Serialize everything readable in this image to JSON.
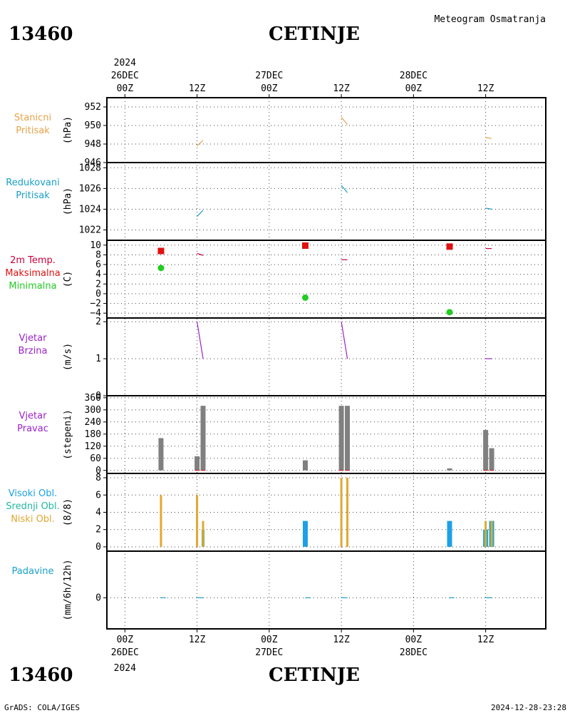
{
  "header": {
    "station_id": "13460",
    "station_name": "CETINJE",
    "subtitle": "Meteogram Osmatranja"
  },
  "footer": {
    "source": "GrADS: COLA/IGES",
    "timestamp": "2024-12-28-23:28"
  },
  "time_axis": {
    "year": "2024",
    "ticks": [
      {
        "hour": 0,
        "label": "00Z",
        "date": "26DEC"
      },
      {
        "hour": 12,
        "label": "12Z"
      },
      {
        "hour": 24,
        "label": "00Z",
        "date": "27DEC"
      },
      {
        "hour": 36,
        "label": "12Z"
      },
      {
        "hour": 48,
        "label": "00Z",
        "date": "28DEC"
      },
      {
        "hour": 60,
        "label": "12Z"
      }
    ],
    "xlim_hours": [
      -3,
      70
    ]
  },
  "colors": {
    "pressure_station": "#e8a24a",
    "pressure_reduced": "#1aa0c8",
    "temp_2m": "#c8003c",
    "temp_max": "#e01010",
    "temp_min": "#22cc22",
    "wind": "#9b22c8",
    "wind_dir_bar": "#808080",
    "cloud_high": "#1ea0e6",
    "cloud_mid": "#22b8a0",
    "cloud_low": "#e0a832",
    "precip": "#1aa0c8"
  },
  "chart_data": [
    {
      "type": "line",
      "panel": "station_pressure",
      "label_lines": [
        "Stanicni",
        "Pritisak"
      ],
      "ylabel": "(hPa)",
      "ylim": [
        946,
        953
      ],
      "yticks": [
        946,
        948,
        950,
        952
      ],
      "grid": true,
      "segments": [
        {
          "x": [
            12,
            13
          ],
          "y": [
            947.8,
            948.4
          ]
        },
        {
          "x": [
            36,
            37
          ],
          "y": [
            950.9,
            950.1
          ]
        },
        {
          "x": [
            60,
            61
          ],
          "y": [
            948.7,
            948.6
          ]
        }
      ]
    },
    {
      "type": "line",
      "panel": "reduced_pressure",
      "label_lines": [
        "Redukovani",
        "Pritisak"
      ],
      "ylabel": "(hPa)",
      "ylim": [
        1021,
        1028.5
      ],
      "yticks": [
        1022,
        1024,
        1026,
        1028
      ],
      "grid": true,
      "segments": [
        {
          "x": [
            12,
            13
          ],
          "y": [
            1023.3,
            1023.9
          ]
        },
        {
          "x": [
            36,
            37
          ],
          "y": [
            1026.3,
            1025.6
          ]
        },
        {
          "x": [
            60,
            61
          ],
          "y": [
            1024.1,
            1024.0
          ]
        }
      ]
    },
    {
      "type": "scatter",
      "panel": "temperature",
      "label_lines": [
        "2m Temp.",
        "Maksimalna",
        "Minimalna"
      ],
      "ylabel": "(C)",
      "ylim": [
        -5,
        11
      ],
      "yticks": [
        -4,
        -2,
        0,
        2,
        4,
        6,
        8,
        10
      ],
      "grid": true,
      "temp_2m": [
        {
          "x": [
            12,
            13
          ],
          "y": [
            8.3,
            7.9
          ]
        },
        {
          "x": [
            36,
            37
          ],
          "y": [
            7.0,
            7.0
          ]
        },
        {
          "x": [
            60,
            61
          ],
          "y": [
            9.3,
            9.3
          ]
        }
      ],
      "maximum": [
        {
          "x": 6,
          "y": 8.8
        },
        {
          "x": 30,
          "y": 9.9
        },
        {
          "x": 54,
          "y": 9.7
        }
      ],
      "minimum": [
        {
          "x": 6,
          "y": 5.3
        },
        {
          "x": 30,
          "y": -0.8
        },
        {
          "x": 54,
          "y": -3.8
        }
      ]
    },
    {
      "type": "line",
      "panel": "wind_speed",
      "label_lines": [
        "Vjetar",
        "Brzina"
      ],
      "ylabel": "(m/s)",
      "ylim": [
        0,
        2.1
      ],
      "yticks": [
        0,
        1,
        2
      ],
      "grid": true,
      "segments": [
        {
          "x": [
            12,
            13
          ],
          "y": [
            2.0,
            1.0
          ]
        },
        {
          "x": [
            36,
            37
          ],
          "y": [
            2.0,
            1.0
          ]
        },
        {
          "x": [
            60,
            61
          ],
          "y": [
            1.0,
            1.0
          ]
        }
      ]
    },
    {
      "type": "bar",
      "panel": "wind_direction",
      "label_lines": [
        "Vjetar",
        "Pravac"
      ],
      "ylabel": "(stepeni)",
      "ylim": [
        -15,
        370
      ],
      "yticks": [
        0,
        60,
        120,
        180,
        240,
        300,
        360
      ],
      "grid": true,
      "x": [
        6,
        12,
        13,
        30,
        36,
        37,
        54,
        60,
        61
      ],
      "values": [
        160,
        70,
        320,
        50,
        320,
        320,
        10,
        200,
        110
      ]
    },
    {
      "type": "bar",
      "panel": "cloud_cover",
      "label_lines": [
        "Visoki Obl.",
        "Srednji Obl.",
        "Niski Obl."
      ],
      "ylabel": "(8/8)",
      "ylim": [
        -0.5,
        8.5
      ],
      "yticks": [
        0,
        2,
        4,
        6,
        8
      ],
      "grid": true,
      "high": [
        {
          "x": 30,
          "value": 3
        },
        {
          "x": 54,
          "value": 3
        },
        {
          "x": 60,
          "value": 2
        },
        {
          "x": 61,
          "value": 3
        }
      ],
      "mid": [
        {
          "x": 13,
          "value": 2
        },
        {
          "x": 60,
          "value": 2
        },
        {
          "x": 61,
          "value": 3
        }
      ],
      "low": [
        {
          "x": 6,
          "value": 6
        },
        {
          "x": 12,
          "value": 6
        },
        {
          "x": 13,
          "value": 3
        },
        {
          "x": 36,
          "value": 8
        },
        {
          "x": 37,
          "value": 8
        },
        {
          "x": 60,
          "value": 3
        },
        {
          "x": 61,
          "value": 3
        }
      ]
    },
    {
      "type": "line",
      "panel": "precipitation",
      "label_lines": [
        "Padavine"
      ],
      "ylabel": "(mm/6h/12h)",
      "ylim": [
        -2,
        3
      ],
      "yticks": [
        0
      ],
      "grid": true,
      "segments": [
        {
          "x": [
            6,
            6.8
          ],
          "y": [
            0,
            0
          ]
        },
        {
          "x": [
            12,
            13
          ],
          "y": [
            0,
            0
          ]
        },
        {
          "x": [
            30,
            30.8
          ],
          "y": [
            0,
            0
          ]
        },
        {
          "x": [
            36,
            37
          ],
          "y": [
            0,
            0
          ]
        },
        {
          "x": [
            54,
            54.8
          ],
          "y": [
            0,
            0
          ]
        },
        {
          "x": [
            60,
            61
          ],
          "y": [
            0,
            0
          ]
        }
      ]
    }
  ]
}
